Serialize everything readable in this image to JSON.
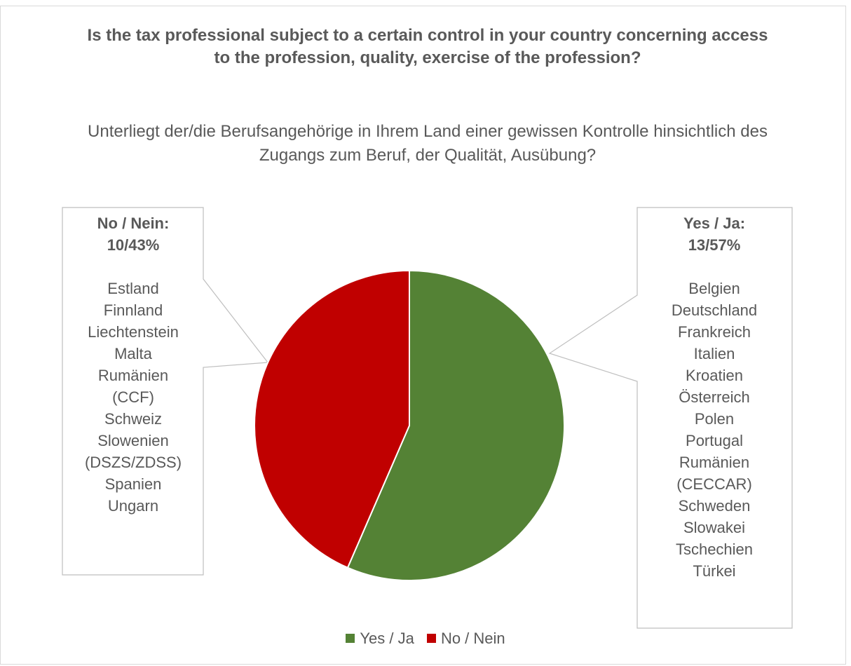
{
  "chart_data": {
    "type": "pie",
    "title": "Is the tax professional subject to a certain control in your country concerning access to the profession, quality, exercise of the profession?",
    "subtitle": "Unterliegt der/die Berufsangehörige in Ihrem Land einer gewissen Kontrolle hinsichtlich des Zugangs zum Beruf, der Qualität, Ausübung?",
    "categories": [
      "Yes / Ja",
      "No / Nein"
    ],
    "values": [
      13,
      10
    ],
    "colors": [
      "#548235",
      "#c00000"
    ],
    "legend_position": "bottom",
    "labels": [
      {
        "heading": [
          "Yes / Ja:",
          "13/57%"
        ],
        "countries": [
          "Belgien",
          "Deutschland",
          "Frankreich",
          "Italien",
          "Kroatien",
          "Österreich",
          "Polen",
          "Portugal",
          "Rumänien",
          "(CECCAR)",
          "Schweden",
          "Slowakei",
          "Tschechien",
          "Türkei"
        ]
      },
      {
        "heading": [
          "No / Nein:",
          "10/43%"
        ],
        "countries": [
          "Estland",
          "Finnland",
          "Liechtenstein",
          "Malta",
          "Rumänien",
          "(CCF)",
          "Schweiz",
          "Slowenien",
          "(DSZS/ZDSS)",
          "Spanien",
          "Ungarn"
        ]
      }
    ]
  }
}
